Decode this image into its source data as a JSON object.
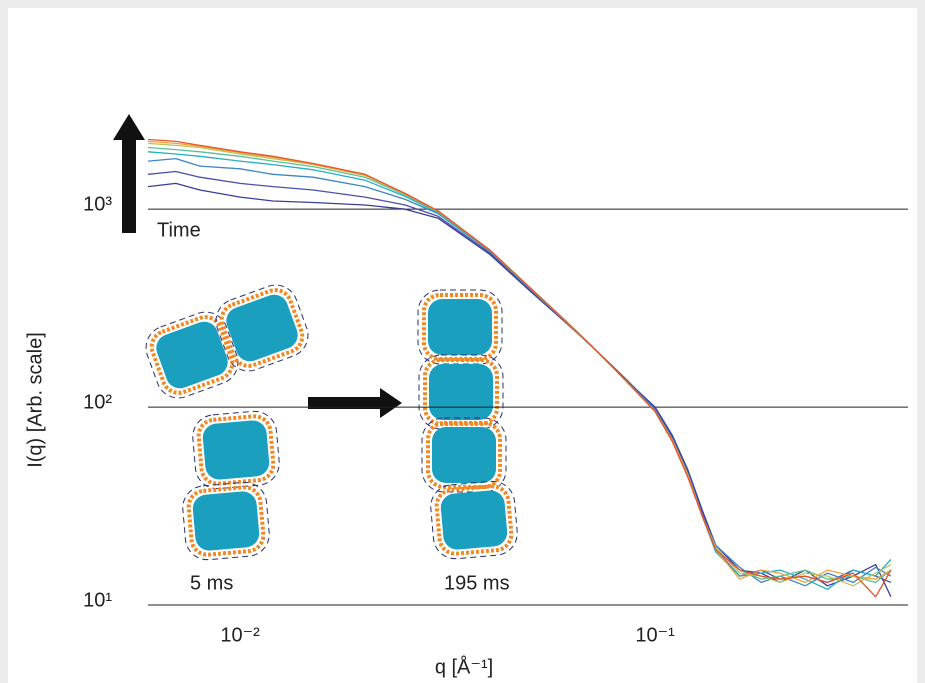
{
  "chart_data": {
    "type": "line",
    "x_label": "q [Å⁻¹]",
    "y_label": "I(q) [Arb. scale]",
    "annotations": [
      "Time",
      "5 ms",
      "195 ms"
    ],
    "log_x": true,
    "log_y": true,
    "grid": true,
    "xlim": [
      0.006,
      0.4
    ],
    "ylim": [
      10,
      4000
    ],
    "xticks": [
      {
        "value": 0.01,
        "label": "10⁻²"
      },
      {
        "value": 0.1,
        "label": "10⁻¹"
      }
    ],
    "yticks": [
      {
        "value": 10,
        "label": "10¹"
      },
      {
        "value": 100,
        "label": "10²"
      },
      {
        "value": 1000,
        "label": "10³"
      }
    ],
    "x": [
      0.006,
      0.007,
      0.008,
      0.01,
      0.012,
      0.015,
      0.02,
      0.025,
      0.03,
      0.04,
      0.05,
      0.06,
      0.07,
      0.08,
      0.09,
      0.1,
      0.11,
      0.12,
      0.13,
      0.14,
      0.16,
      0.18,
      0.2,
      0.23,
      0.26,
      0.3,
      0.34,
      0.37
    ],
    "series": [
      {
        "color": "#3a3d98",
        "values": [
          1300,
          1350,
          1250,
          1150,
          1100,
          1080,
          1050,
          1000,
          900,
          590,
          385,
          275,
          205,
          157,
          123,
          100,
          72,
          48,
          30,
          20,
          15,
          14.5,
          13,
          15,
          12.5,
          14,
          16,
          11
        ]
      },
      {
        "color": "#4a4fa8",
        "values": [
          1500,
          1550,
          1450,
          1350,
          1300,
          1250,
          1150,
          1050,
          920,
          600,
          390,
          278,
          204,
          156,
          122,
          98,
          70,
          47,
          29,
          19,
          14,
          15,
          13.5,
          14,
          13,
          15,
          14,
          13
        ]
      },
      {
        "color": "#3e86c2",
        "values": [
          1750,
          1800,
          1650,
          1600,
          1500,
          1450,
          1300,
          1120,
          950,
          610,
          395,
          279,
          205,
          155,
          121,
          97,
          69,
          46,
          28,
          20,
          15.5,
          13,
          14,
          12.5,
          14.5,
          13,
          15.5,
          14
        ]
      },
      {
        "color": "#27aec0",
        "values": [
          1950,
          1900,
          1850,
          1750,
          1680,
          1580,
          1400,
          1160,
          960,
          615,
          398,
          280,
          205,
          155,
          120,
          96,
          68,
          45,
          28,
          18.5,
          14,
          14.5,
          15,
          13.5,
          12,
          15,
          14,
          17
        ]
      },
      {
        "color": "#5cbf94",
        "values": [
          2050,
          2000,
          1950,
          1850,
          1750,
          1640,
          1450,
          1180,
          970,
          618,
          399,
          280,
          205,
          155,
          120,
          95,
          68,
          45,
          28,
          19,
          15,
          13.5,
          14,
          15,
          13.5,
          14,
          13,
          15
        ]
      },
      {
        "color": "#b5c55a",
        "values": [
          2150,
          2100,
          2050,
          1900,
          1800,
          1680,
          1480,
          1190,
          975,
          620,
          400,
          280,
          205,
          155,
          120,
          95,
          68,
          45,
          28,
          19.5,
          14.5,
          14,
          13,
          14.5,
          14,
          12.5,
          14.5,
          16
        ]
      },
      {
        "color": "#f2a23c",
        "values": [
          2200,
          2150,
          2080,
          1930,
          1830,
          1690,
          1490,
          1200,
          980,
          620,
          400,
          280,
          205,
          155,
          120,
          95,
          68,
          45,
          28,
          19,
          13.5,
          15,
          14.5,
          13,
          15,
          14,
          13.5,
          15
        ]
      },
      {
        "color": "#e8532a",
        "values": [
          2250,
          2200,
          2100,
          1950,
          1850,
          1700,
          1500,
          1200,
          980,
          620,
          400,
          281,
          206,
          155,
          120,
          95,
          67,
          44,
          28,
          19,
          15,
          14,
          13.5,
          14,
          13,
          14.5,
          11,
          15
        ]
      }
    ]
  }
}
